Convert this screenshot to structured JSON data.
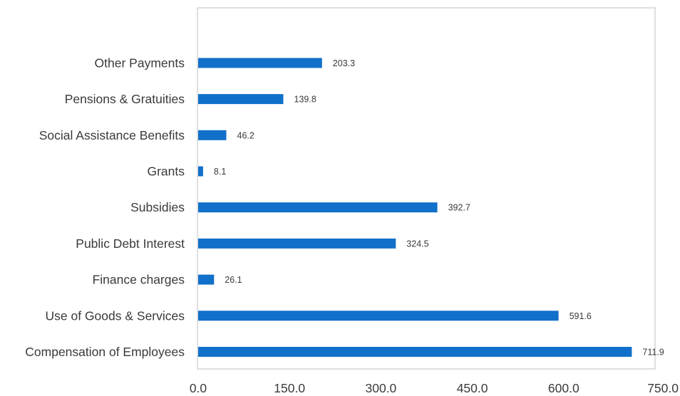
{
  "chart_data": {
    "type": "bar",
    "orientation": "horizontal",
    "title": "",
    "xlabel": "",
    "ylabel": "",
    "categories": [
      "Compensation of Employees",
      "Use of Goods & Services",
      "Finance charges",
      "Public Debt Interest",
      "Subsidies",
      "Grants",
      "Social Assistance Benefits",
      "Pensions & Gratuities",
      "Other Payments"
    ],
    "values": [
      711.9,
      591.6,
      26.1,
      324.5,
      392.7,
      8.1,
      46.2,
      139.8,
      203.3
    ],
    "value_labels": [
      "711.9",
      "591.6",
      "26.1",
      "324.5",
      "392.7",
      "8.1",
      "46.2",
      "139.8",
      "203.3"
    ],
    "xlim": [
      0,
      750
    ],
    "x_ticks": [
      "0.0",
      "150.0",
      "300.0",
      "450.0",
      "600.0",
      "750.0"
    ],
    "x_tick_values": [
      0,
      150,
      300,
      450,
      600,
      750
    ],
    "grid": false,
    "legend": "none",
    "bar_color": "#1170c9",
    "frame_color": "#bfbfbf"
  }
}
